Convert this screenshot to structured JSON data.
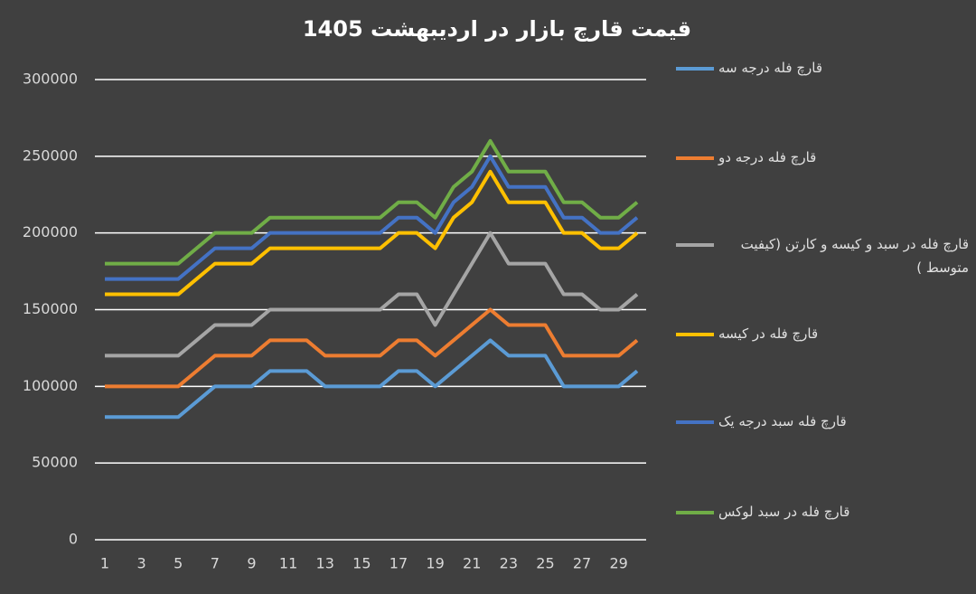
{
  "chart_data": {
    "type": "line",
    "title": "قیمت قارچ بازار در اردیبهشت 1405",
    "x": [
      1,
      2,
      3,
      4,
      5,
      6,
      7,
      8,
      9,
      10,
      11,
      12,
      13,
      14,
      15,
      16,
      17,
      18,
      19,
      20,
      21,
      22,
      23,
      24,
      25,
      26,
      27,
      28,
      29,
      30
    ],
    "xlim": [
      1,
      30
    ],
    "xticks": [
      1,
      3,
      5,
      7,
      9,
      11,
      13,
      15,
      17,
      19,
      21,
      23,
      25,
      27,
      29
    ],
    "ylim": [
      0,
      300000
    ],
    "yticks": [
      0,
      50000,
      100000,
      150000,
      200000,
      250000,
      300000
    ],
    "grid": true,
    "legend": "right",
    "series": [
      {
        "name": "قارچ فله درجه سه",
        "color": "#5b9bd5",
        "values": [
          80000,
          80000,
          80000,
          80000,
          80000,
          90000,
          100000,
          100000,
          100000,
          110000,
          110000,
          110000,
          100000,
          100000,
          100000,
          100000,
          110000,
          110000,
          100000,
          110000,
          120000,
          130000,
          120000,
          120000,
          120000,
          100000,
          100000,
          100000,
          100000,
          110000
        ]
      },
      {
        "name": "قارچ فله درجه دو",
        "color": "#ed7d31",
        "values": [
          100000,
          100000,
          100000,
          100000,
          100000,
          110000,
          120000,
          120000,
          120000,
          130000,
          130000,
          130000,
          120000,
          120000,
          120000,
          120000,
          130000,
          130000,
          120000,
          130000,
          140000,
          150000,
          140000,
          140000,
          140000,
          120000,
          120000,
          120000,
          120000,
          130000
        ]
      },
      {
        "name": "قارچ فله در سبد و کیسه و کارتن (کیفیت متوسط )",
        "color": "#a5a5a5",
        "values": [
          120000,
          120000,
          120000,
          120000,
          120000,
          130000,
          140000,
          140000,
          140000,
          150000,
          150000,
          150000,
          150000,
          150000,
          150000,
          150000,
          160000,
          160000,
          140000,
          160000,
          180000,
          200000,
          180000,
          180000,
          180000,
          160000,
          160000,
          150000,
          150000,
          160000
        ]
      },
      {
        "name": "قارچ فله در کیسه",
        "color": "#ffc000",
        "values": [
          160000,
          160000,
          160000,
          160000,
          160000,
          170000,
          180000,
          180000,
          180000,
          190000,
          190000,
          190000,
          190000,
          190000,
          190000,
          190000,
          200000,
          200000,
          190000,
          210000,
          220000,
          240000,
          220000,
          220000,
          220000,
          200000,
          200000,
          190000,
          190000,
          200000
        ]
      },
      {
        "name": "قارچ فله سبد درجه یک",
        "color": "#4472c4",
        "values": [
          170000,
          170000,
          170000,
          170000,
          170000,
          180000,
          190000,
          190000,
          190000,
          200000,
          200000,
          200000,
          200000,
          200000,
          200000,
          200000,
          210000,
          210000,
          200000,
          220000,
          230000,
          250000,
          230000,
          230000,
          230000,
          210000,
          210000,
          200000,
          200000,
          210000
        ]
      },
      {
        "name": "قارچ فله در سبد لوکس",
        "color": "#70ad47",
        "values": [
          180000,
          180000,
          180000,
          180000,
          180000,
          190000,
          200000,
          200000,
          200000,
          210000,
          210000,
          210000,
          210000,
          210000,
          210000,
          210000,
          220000,
          220000,
          210000,
          230000,
          240000,
          260000,
          240000,
          240000,
          240000,
          220000,
          220000,
          210000,
          210000,
          220000
        ]
      }
    ]
  }
}
